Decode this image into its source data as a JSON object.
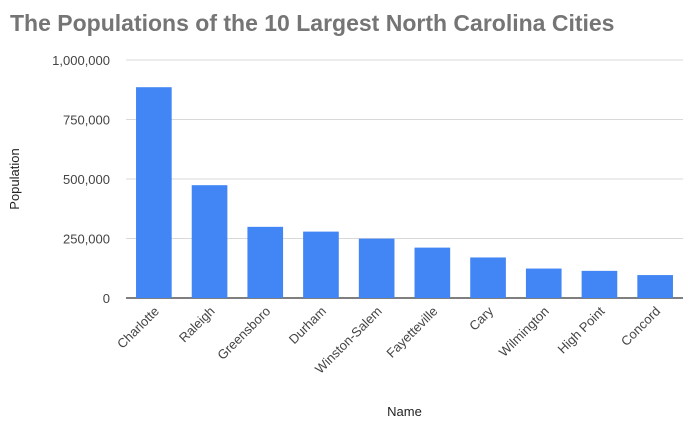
{
  "chart_data": {
    "type": "bar",
    "title": "The Populations of the 10 Largest North Carolina Cities",
    "xlabel": "Name",
    "ylabel": "Population",
    "categories": [
      "Charlotte",
      "Raleigh",
      "Greensboro",
      "Durham",
      "Winston-Salem",
      "Fayetteville",
      "Cary",
      "Wilmington",
      "High Point",
      "Concord"
    ],
    "values": [
      885700,
      474000,
      299000,
      278900,
      249500,
      211700,
      170300,
      123700,
      114000,
      96300
    ],
    "ylim": [
      0,
      1000000
    ],
    "yticks": [
      0,
      250000,
      500000,
      750000,
      1000000
    ],
    "ytick_labels": [
      "0",
      "250,000",
      "500,000",
      "750,000",
      "1,000,000"
    ],
    "grid": true,
    "legend": "none",
    "colors": {
      "bar": "#4285f4",
      "grid": "#d9d9d9",
      "axis": "#333333"
    }
  }
}
